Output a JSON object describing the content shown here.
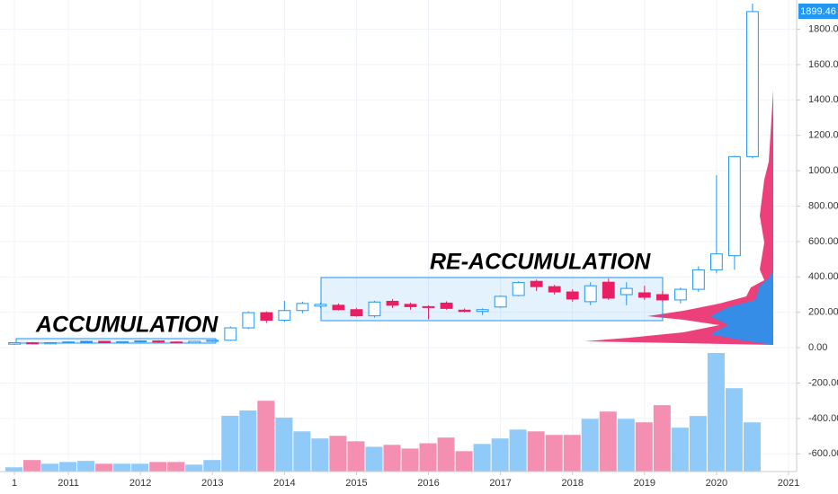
{
  "chart_data": {
    "type": "candlestick",
    "annotations": [
      "ACCUMULATION",
      "RE-ACCUMULATION"
    ],
    "x": [
      0,
      1,
      2,
      3,
      4,
      5,
      6,
      7,
      8,
      9,
      10,
      11,
      12,
      13,
      14,
      15,
      16,
      17,
      18,
      19,
      20,
      21,
      22,
      23,
      24,
      25,
      26,
      27,
      28,
      29,
      30,
      31,
      32,
      33,
      34,
      35,
      36,
      37,
      38,
      39,
      40,
      41
    ],
    "open": [
      20,
      28,
      22,
      28,
      32,
      36,
      28,
      34,
      38,
      32,
      27,
      36,
      42,
      112,
      198,
      155,
      210,
      235,
      240,
      215,
      180,
      262,
      245,
      232,
      252,
      212,
      205,
      230,
      295,
      375,
      345,
      315,
      260,
      370,
      300,
      310,
      300,
      270,
      330,
      440,
      520,
      1080
    ],
    "high": [
      30,
      32,
      30,
      34,
      38,
      38,
      36,
      40,
      42,
      36,
      38,
      45,
      120,
      205,
      205,
      265,
      260,
      255,
      250,
      225,
      265,
      275,
      255,
      240,
      262,
      222,
      222,
      295,
      375,
      385,
      355,
      330,
      370,
      390,
      370,
      350,
      320,
      340,
      460,
      975,
      1085,
      1945
    ],
    "low": [
      15,
      18,
      20,
      24,
      28,
      26,
      26,
      30,
      30,
      25,
      25,
      32,
      38,
      105,
      140,
      145,
      195,
      225,
      210,
      175,
      170,
      225,
      215,
      160,
      215,
      200,
      185,
      225,
      290,
      320,
      300,
      260,
      240,
      270,
      240,
      270,
      260,
      250,
      315,
      420,
      440,
      1070
    ],
    "close": [
      28,
      22,
      28,
      32,
      36,
      28,
      34,
      38,
      32,
      27,
      36,
      42,
      112,
      198,
      155,
      210,
      250,
      245,
      215,
      180,
      258,
      240,
      232,
      228,
      222,
      205,
      215,
      290,
      368,
      345,
      315,
      275,
      350,
      280,
      335,
      285,
      270,
      330,
      440,
      530,
      1080,
      1899.46
    ],
    "volume": [
      -676,
      -635,
      -656,
      -646,
      -640,
      -656,
      -656,
      -656,
      -646,
      -646,
      -661,
      -635,
      -385,
      -355,
      -300,
      -395,
      -473,
      -513,
      -498,
      -529,
      -560,
      -549,
      -570,
      -540,
      -508,
      -585,
      -544,
      -513,
      -463,
      -473,
      -493,
      -493,
      -402,
      -361,
      -402,
      -422,
      -325,
      -452,
      -386,
      -30,
      -229,
      -422
    ],
    "colors": {
      "up": "#2196f3",
      "down": "#e91e63",
      "volume_up": "#90caf9",
      "volume_down": "#f48fb1"
    },
    "xlim": [
      -0.8,
      43.45
    ],
    "xticks": [
      {
        "value": 0,
        "label": "1"
      },
      {
        "value": 3,
        "label": "2011"
      },
      {
        "value": 7,
        "label": "2012"
      },
      {
        "value": 11,
        "label": "2013"
      },
      {
        "value": 15,
        "label": "2014"
      },
      {
        "value": 19,
        "label": "2015"
      },
      {
        "value": 23,
        "label": "2016"
      },
      {
        "value": 27,
        "label": "2017"
      },
      {
        "value": 31,
        "label": "2018"
      },
      {
        "value": 35,
        "label": "2019"
      },
      {
        "value": 39,
        "label": "2020"
      },
      {
        "value": 43,
        "label": "2021"
      }
    ],
    "ylim": [
      -700,
      1965
    ],
    "yticks": [
      {
        "value": -600,
        "label": "-600.00"
      },
      {
        "value": -400,
        "label": "-400.00"
      },
      {
        "value": -200,
        "label": "-200.00"
      },
      {
        "value": 0,
        "label": "0.00"
      },
      {
        "value": 200,
        "label": "200.00"
      },
      {
        "value": 400,
        "label": "400.00"
      },
      {
        "value": 600,
        "label": "600.00"
      },
      {
        "value": 800,
        "label": "800.00"
      },
      {
        "value": 1000,
        "label": "1000.00"
      },
      {
        "value": 1200,
        "label": "1200.00"
      },
      {
        "value": 1400,
        "label": "1400.00"
      },
      {
        "value": 1600,
        "label": "1600.00"
      },
      {
        "value": 1800,
        "label": "1800.00"
      }
    ],
    "grid": true
  }
}
